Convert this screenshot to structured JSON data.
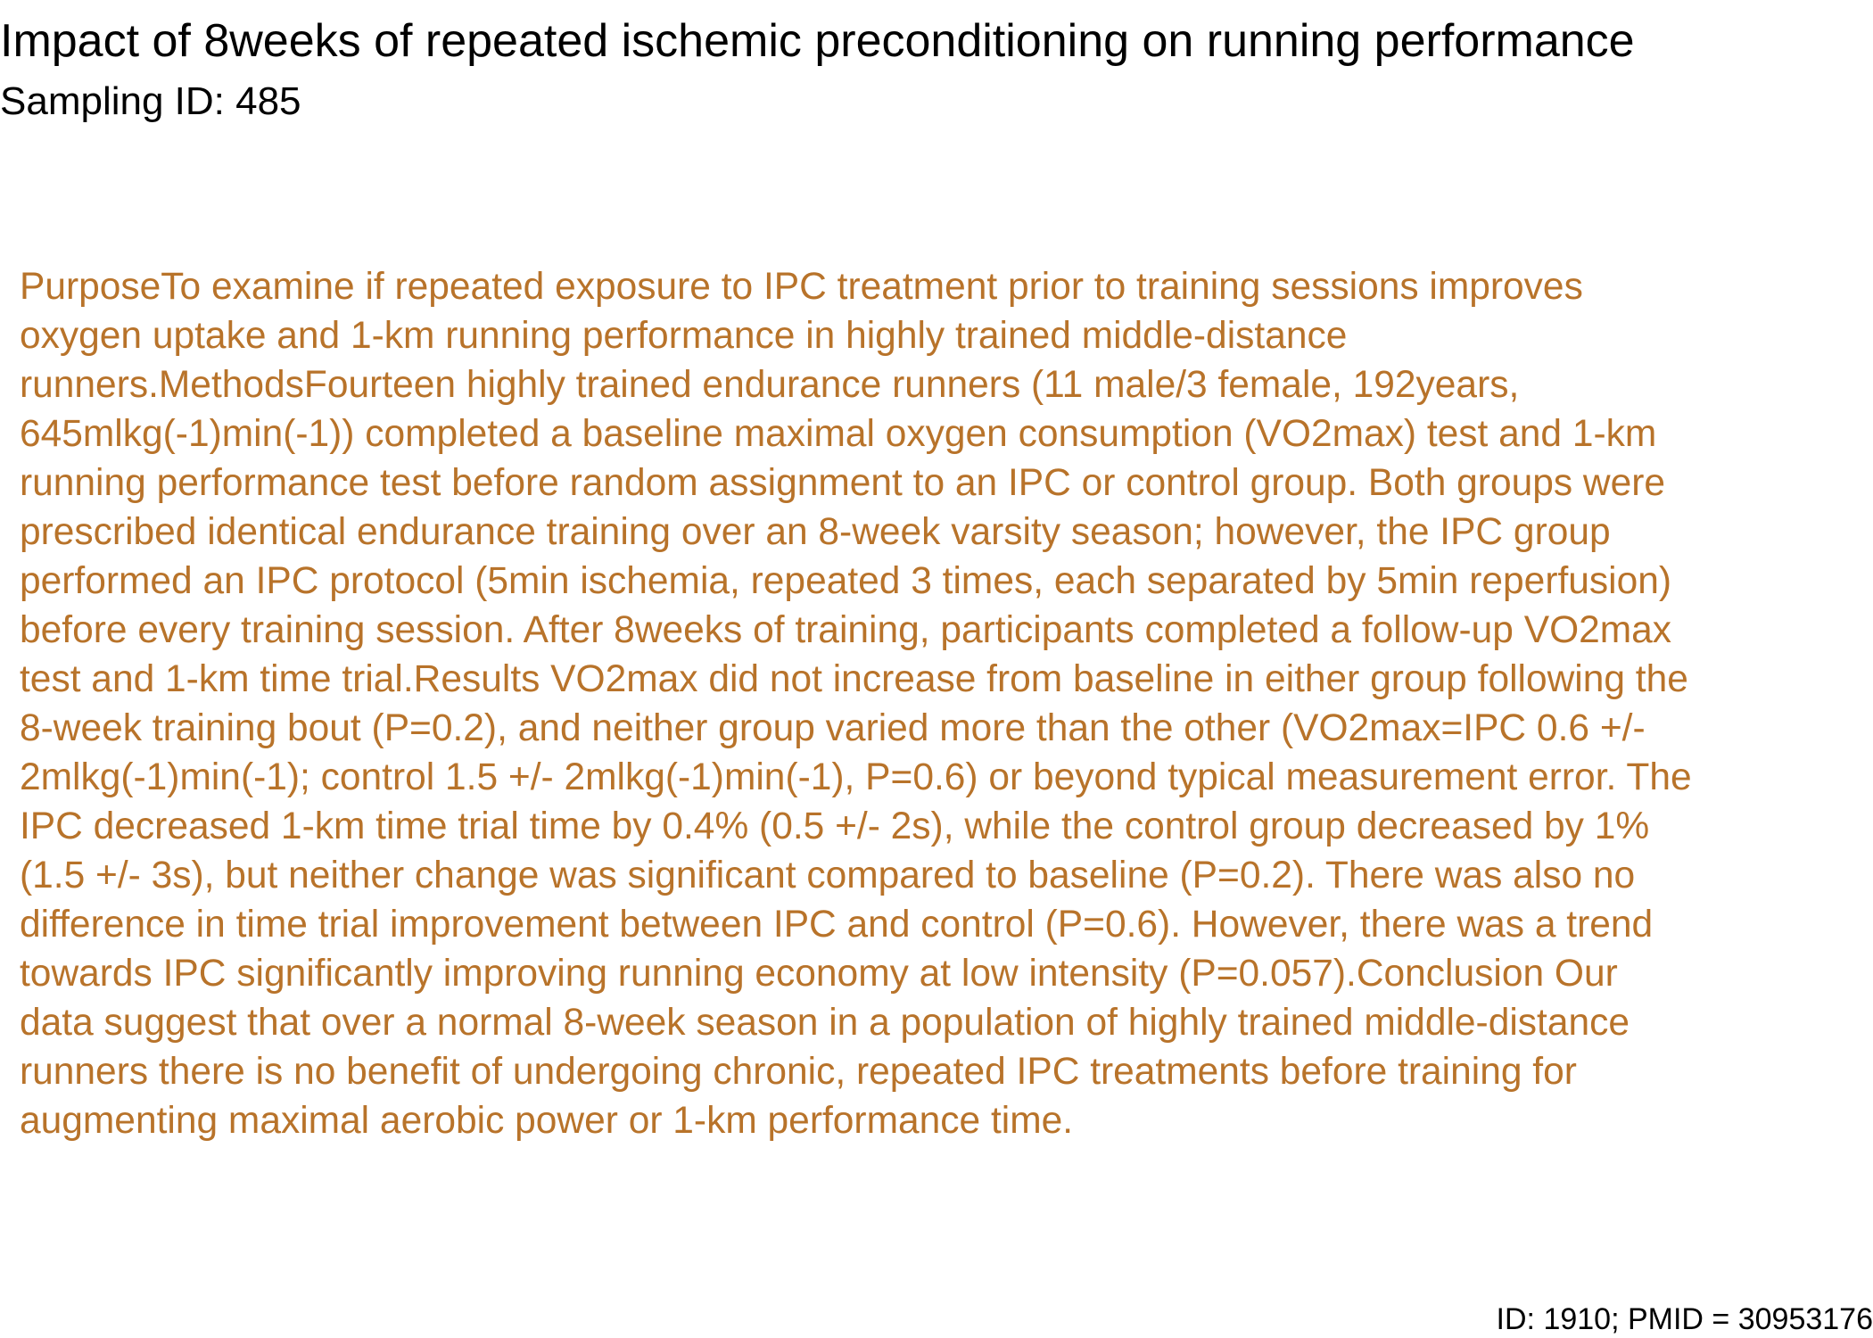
{
  "title": "Impact of 8weeks of repeated ischemic preconditioning on running performance",
  "subtitle": "Sampling ID: 485",
  "abstract": "PurposeTo examine if repeated exposure to IPC treatment prior to training sessions improves\noxygen uptake and 1-km running performance in highly trained middle-distance\nrunners.MethodsFourteen highly trained endurance runners (11 male/3 female, 192years,\n645mlkg(-1)min(-1)) completed a baseline maximal oxygen consumption (VO2max) test and 1-km\nrunning performance test before random assignment to an IPC or control group. Both groups were\nprescribed identical endurance training over an 8-week varsity season; however, the IPC group\nperformed an IPC protocol (5min ischemia, repeated 3 times, each separated by 5min reperfusion)\nbefore every training session. After 8weeks of training, participants completed a follow-up VO2max\ntest and 1-km time trial.Results VO2max did not increase from baseline in either group following the\n8-week training bout (P=0.2), and neither group varied more than the other (VO2max=IPC 0.6 +/-\n2mlkg(-1)min(-1); control 1.5 +/- 2mlkg(-1)min(-1), P=0.6) or beyond typical measurement error. The\nIPC decreased 1-km time trial time by 0.4% (0.5 +/- 2s), while the control group decreased by 1%\n(1.5 +/- 3s), but neither change was significant compared to baseline (P=0.2). There was also no\ndifference in time trial improvement between IPC and control (P=0.6). However, there was a trend\ntowards IPC significantly improving running economy at low intensity (P=0.057).Conclusion Our\ndata suggest that over a normal 8-week season in a population of highly trained middle-distance\nrunners there is no benefit of undergoing chronic, repeated IPC treatments before training for\naugmenting maximal aerobic power or 1-km performance time.",
  "footer": "ID: 1910; PMID = 30953176",
  "colors": {
    "abstract_text": "#b8732a",
    "heading_text": "#000000",
    "background": "#ffffff"
  }
}
